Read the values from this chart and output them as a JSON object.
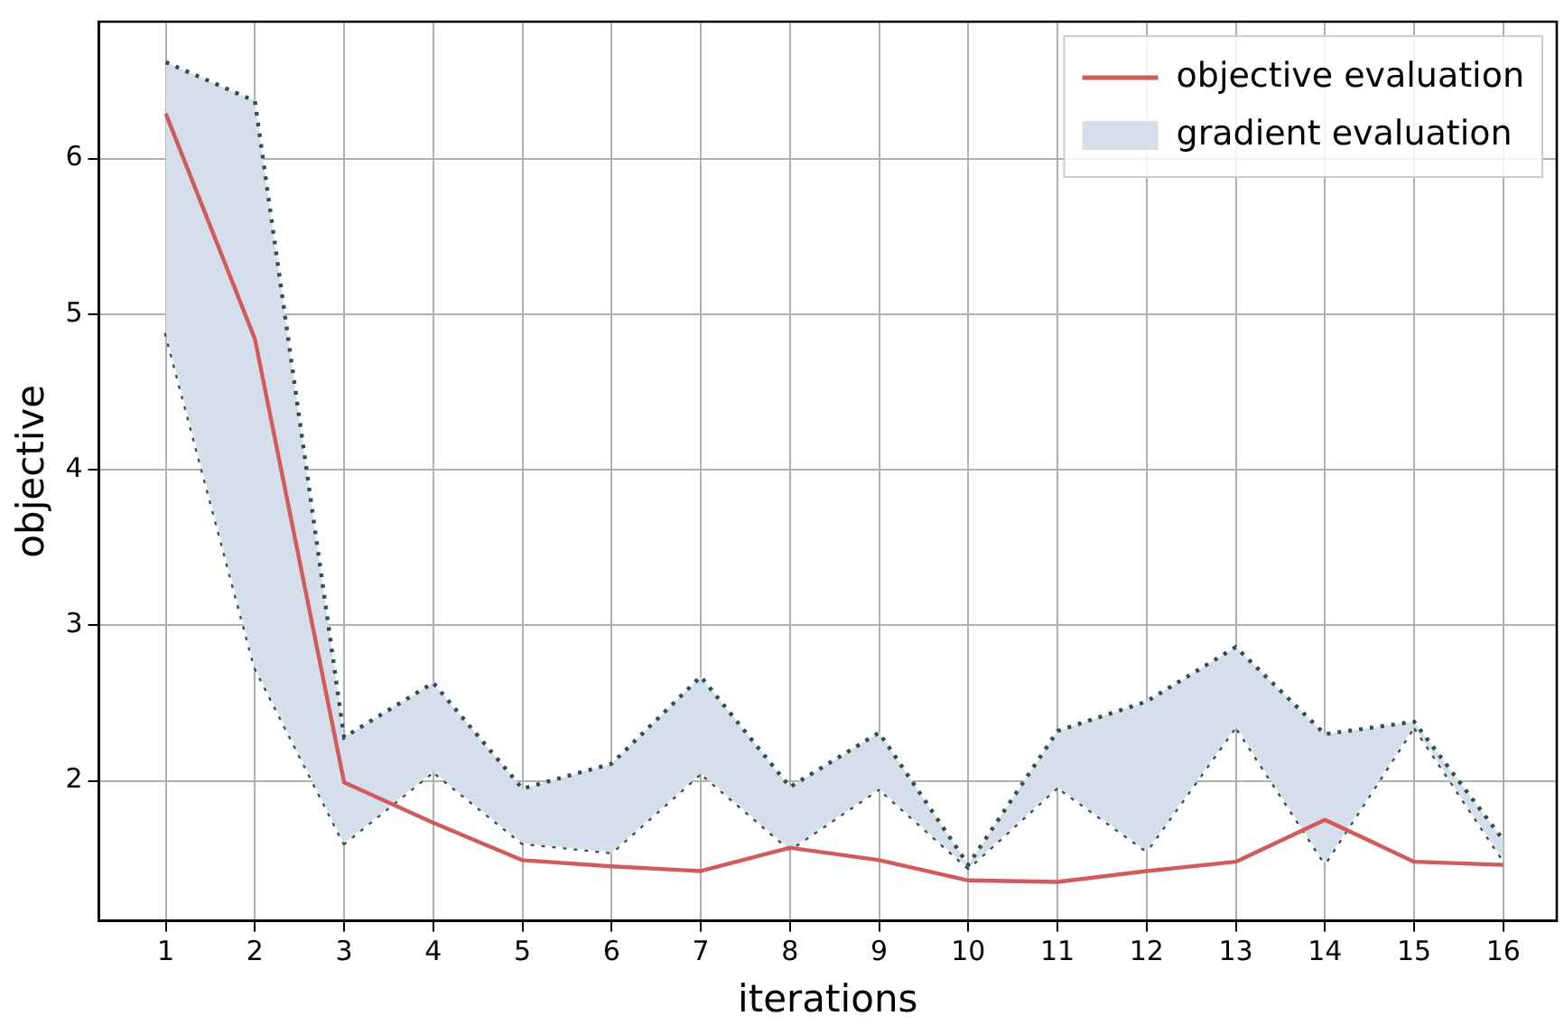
{
  "chart_data": {
    "type": "line",
    "xlabel": "iterations",
    "ylabel": "objective",
    "x": [
      1,
      2,
      3,
      4,
      5,
      6,
      7,
      8,
      9,
      10,
      11,
      12,
      13,
      14,
      15,
      16
    ],
    "series": [
      {
        "name": "objective evaluation",
        "color": "#d15b5b",
        "values": [
          6.29,
          4.84,
          1.99,
          1.73,
          1.49,
          1.45,
          1.42,
          1.57,
          1.49,
          1.36,
          1.35,
          1.42,
          1.48,
          1.75,
          1.48,
          1.46
        ]
      },
      {
        "name": "gradient evaluation",
        "type": "area",
        "color": "#d5dfeb",
        "line_style": "dotted",
        "values": [
          6.62,
          6.37,
          2.28,
          2.63,
          1.95,
          2.11,
          2.67,
          1.96,
          2.31,
          1.46,
          2.32,
          2.51,
          2.86,
          2.3,
          2.38,
          1.62
        ]
      },
      {
        "type": "line",
        "color": "#2f4f4f",
        "line_style": "dotted",
        "values": [
          4.88,
          2.73,
          1.6,
          2.06,
          1.6,
          1.54,
          2.05,
          1.56,
          1.95,
          1.44,
          1.96,
          1.55,
          2.35,
          1.47,
          2.35,
          1.49
        ]
      }
    ],
    "xlim": [
      0.25,
      16.6
    ],
    "xticks": [
      1,
      2,
      3,
      4,
      5,
      6,
      7,
      8,
      9,
      10,
      11,
      12,
      13,
      14,
      15,
      16
    ],
    "ylim": [
      1.1,
      6.88
    ],
    "yticks": [
      2,
      3,
      4,
      5,
      6
    ],
    "grid": true,
    "legend": "top right"
  }
}
